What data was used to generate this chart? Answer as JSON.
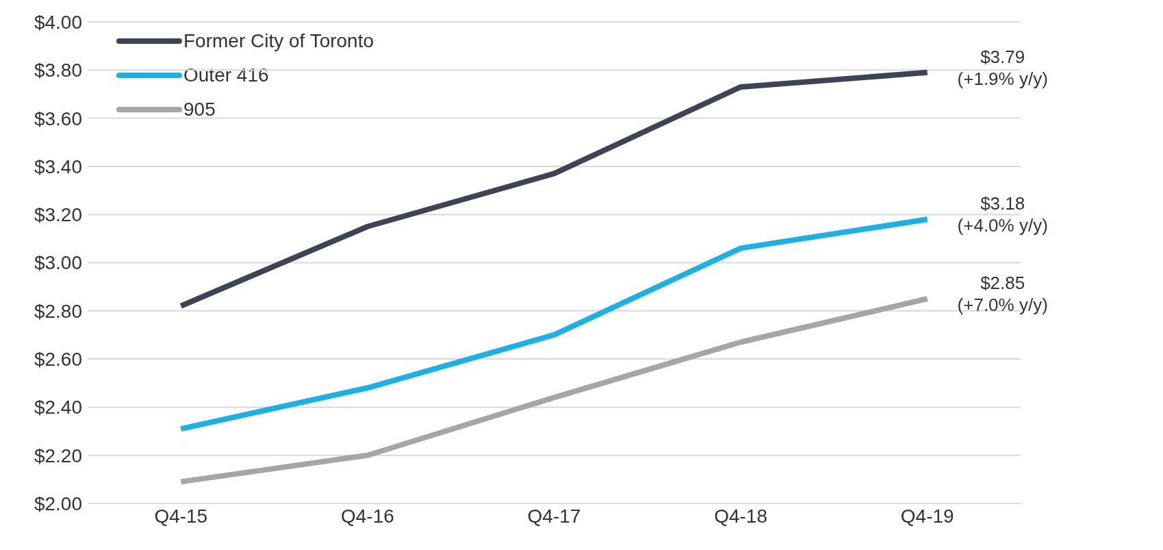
{
  "chart_data": {
    "type": "line",
    "categories": [
      "Q4-15",
      "Q4-16",
      "Q4-17",
      "Q4-18",
      "Q4-19"
    ],
    "series": [
      {
        "name": "Former City of Toronto",
        "color": "#3d4455",
        "values": [
          2.82,
          3.15,
          3.37,
          3.73,
          3.79
        ]
      },
      {
        "name": "Outer 416",
        "color": "#1ab0e8",
        "values": [
          2.31,
          2.48,
          2.7,
          3.06,
          3.18
        ]
      },
      {
        "name": "905",
        "color": "#a6a6a6",
        "values": [
          2.09,
          2.2,
          2.44,
          2.67,
          2.85
        ]
      }
    ],
    "ylim": [
      2,
      4
    ],
    "yticks": [
      {
        "value": 2,
        "label": "$2.00"
      },
      {
        "value": 2.2,
        "label": "$2.20"
      },
      {
        "value": 2.4,
        "label": "$2.40"
      },
      {
        "value": 2.6,
        "label": "$2.60"
      },
      {
        "value": 2.8,
        "label": "$2.80"
      },
      {
        "value": 3,
        "label": "$3.00"
      },
      {
        "value": 3.2,
        "label": "$3.20"
      },
      {
        "value": 3.4,
        "label": "$3.40"
      },
      {
        "value": 3.6,
        "label": "$3.60"
      },
      {
        "value": 3.8,
        "label": "$3.80"
      },
      {
        "value": 4,
        "label": "$4.00"
      }
    ],
    "grid": "y",
    "legend": "top left",
    "marker": "none",
    "line_style": "solid",
    "annotations": [
      {
        "text": "$3.79\n(+1.9% y/y)",
        "x": "Q4-19",
        "y": 3.79
      },
      {
        "text": "$3.18\n(+4.0% y/y)",
        "x": "Q4-19",
        "y": 3.18
      },
      {
        "text": "$2.85\n(+7.0% y/y)",
        "x": "Q4-19",
        "y": 2.85
      }
    ]
  }
}
